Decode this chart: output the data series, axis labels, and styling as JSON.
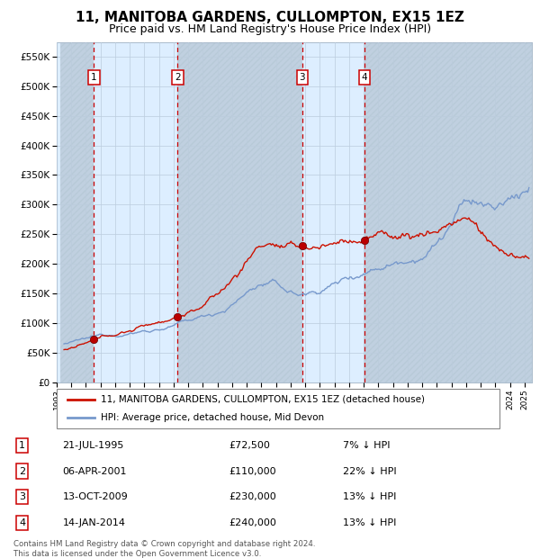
{
  "title": "11, MANITOBA GARDENS, CULLOMPTON, EX15 1EZ",
  "subtitle": "Price paid vs. HM Land Registry's House Price Index (HPI)",
  "ylim": [
    0,
    575000
  ],
  "xlim_start": 1993.25,
  "xlim_end": 2025.5,
  "yticks": [
    0,
    50000,
    100000,
    150000,
    200000,
    250000,
    300000,
    350000,
    400000,
    450000,
    500000,
    550000
  ],
  "ytick_labels": [
    "£0",
    "£50K",
    "£100K",
    "£150K",
    "£200K",
    "£250K",
    "£300K",
    "£350K",
    "£400K",
    "£450K",
    "£500K",
    "£550K"
  ],
  "hpi_color": "#7799cc",
  "price_color": "#cc1100",
  "marker_color": "#bb0000",
  "dashed_line_color": "#cc0000",
  "bg_color": "#ddeeff",
  "hatch_color": "#c0d0e0",
  "grid_color": "#bbccdd",
  "title_fontsize": 11,
  "subtitle_fontsize": 9,
  "sale_dates": [
    1995.55,
    2001.27,
    2009.79,
    2014.04
  ],
  "sale_prices": [
    72500,
    110000,
    230000,
    240000
  ],
  "sale_labels": [
    "1",
    "2",
    "3",
    "4"
  ],
  "sale_info": [
    {
      "num": "1",
      "date": "21-JUL-1995",
      "price": "£72,500",
      "hpi": "7% ↓ HPI"
    },
    {
      "num": "2",
      "date": "06-APR-2001",
      "price": "£110,000",
      "hpi": "22% ↓ HPI"
    },
    {
      "num": "3",
      "date": "13-OCT-2009",
      "price": "£230,000",
      "hpi": "13% ↓ HPI"
    },
    {
      "num": "4",
      "date": "14-JAN-2014",
      "price": "£240,000",
      "hpi": "13% ↓ HPI"
    }
  ],
  "legend_property_label": "11, MANITOBA GARDENS, CULLOMPTON, EX15 1EZ (detached house)",
  "legend_hpi_label": "HPI: Average price, detached house, Mid Devon",
  "footer_text": "Contains HM Land Registry data © Crown copyright and database right 2024.\nThis data is licensed under the Open Government Licence v3.0."
}
